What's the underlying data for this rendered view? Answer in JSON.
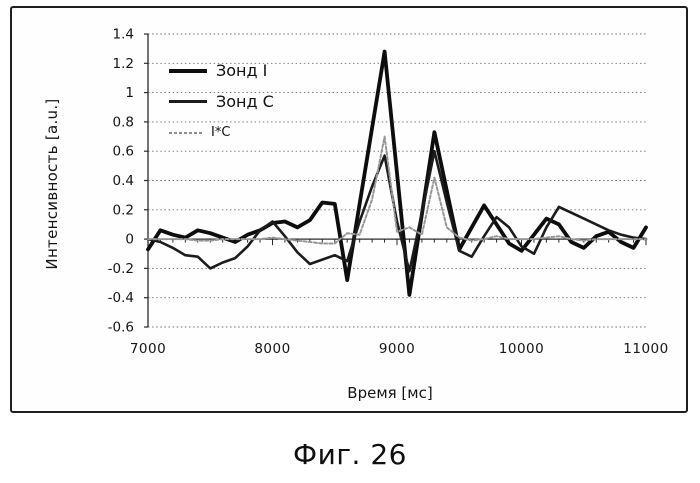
{
  "figure": {
    "caption": "Фиг. 26"
  },
  "chart_data": {
    "type": "line",
    "title": "",
    "xlabel": "Время [мс]",
    "ylabel": "Интенсивность [a.u.]",
    "xlim": [
      7000,
      11000
    ],
    "ylim": [
      -0.6,
      1.4
    ],
    "grid": "horizontal-dotted",
    "legend_position": "top-left-inside",
    "x_tick_labels": [
      "7000",
      "8000",
      "9000",
      "10000",
      "11000"
    ],
    "x_ticks": [
      7000,
      8000,
      9000,
      10000,
      11000
    ],
    "x_minor_tick_step": 100,
    "y_tick_labels": [
      "1.4",
      "1.2",
      "1",
      "0.8",
      "0.6",
      "0.4",
      "0.2",
      "0",
      "-0.2",
      "-0.4",
      "-0.6"
    ],
    "y_ticks": [
      1.4,
      1.2,
      1.0,
      0.8,
      0.6,
      0.4,
      0.2,
      0,
      -0.2,
      -0.4,
      -0.6
    ],
    "x": [
      7000,
      7100,
      7200,
      7300,
      7400,
      7500,
      7600,
      7700,
      7800,
      7900,
      8000,
      8100,
      8200,
      8300,
      8400,
      8500,
      8600,
      8700,
      8800,
      8900,
      9000,
      9100,
      9200,
      9300,
      9400,
      9500,
      9600,
      9700,
      9800,
      9900,
      10000,
      10100,
      10200,
      10300,
      10400,
      10500,
      10600,
      10700,
      10800,
      10900,
      11000
    ],
    "series": [
      {
        "name": "Зонд I",
        "color": "#0d0d0d",
        "width": 3.8,
        "style": "solid",
        "values": [
          -0.07,
          0.06,
          0.03,
          0.01,
          0.06,
          0.04,
          0.01,
          -0.02,
          0.03,
          0.06,
          0.11,
          0.12,
          0.08,
          0.13,
          0.25,
          0.24,
          -0.28,
          0.24,
          0.76,
          1.28,
          0.45,
          -0.38,
          0.17,
          0.73,
          0.33,
          -0.07,
          0.08,
          0.23,
          0.1,
          -0.03,
          -0.08,
          0.03,
          0.14,
          0.1,
          -0.02,
          -0.06,
          0.02,
          0.05,
          -0.02,
          -0.06,
          0.08
        ]
      },
      {
        "name": "Зонд C",
        "color": "#1c1c1c",
        "width": 2.6,
        "style": "solid",
        "values": [
          0.0,
          -0.02,
          -0.06,
          -0.11,
          -0.12,
          -0.2,
          -0.16,
          -0.13,
          -0.05,
          0.06,
          0.12,
          0.02,
          -0.09,
          -0.17,
          -0.14,
          -0.11,
          -0.15,
          0.12,
          0.36,
          0.57,
          0.12,
          -0.22,
          0.18,
          0.6,
          0.25,
          -0.08,
          -0.12,
          0.02,
          0.15,
          0.08,
          -0.05,
          -0.1,
          0.08,
          0.22,
          0.18,
          0.14,
          0.1,
          0.06,
          0.03,
          0.01,
          0.0
        ]
      },
      {
        "name": "I*C",
        "color": "#979797",
        "width": 2,
        "style": "dashed",
        "values": [
          0.0,
          0.0,
          0.0,
          0.0,
          -0.01,
          -0.01,
          0.0,
          0.0,
          0.0,
          0.0,
          0.01,
          0.0,
          -0.01,
          -0.02,
          -0.03,
          -0.03,
          0.04,
          0.03,
          0.27,
          0.7,
          0.05,
          0.08,
          0.03,
          0.42,
          0.08,
          0.01,
          -0.01,
          0.0,
          0.02,
          0.0,
          0.0,
          0.0,
          0.01,
          0.02,
          0.0,
          -0.01,
          0.0,
          0.0,
          0.0,
          0.0,
          0.0
        ]
      }
    ]
  }
}
